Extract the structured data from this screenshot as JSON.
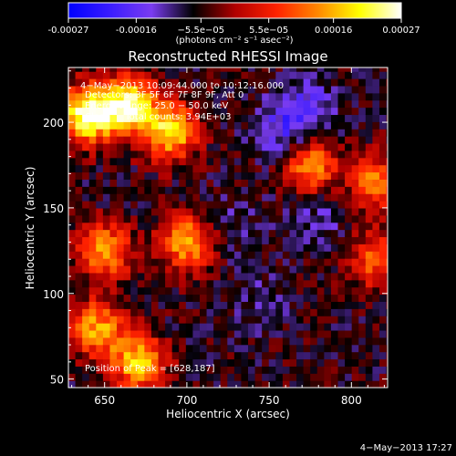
{
  "chart_data": {
    "type": "heatmap",
    "title": "Reconstructed RHESSI Image",
    "xlabel": "Heliocentric X (arcsec)",
    "ylabel": "Heliocentric Y (arcsec)",
    "xlim": [
      628,
      822
    ],
    "ylim": [
      45,
      232
    ],
    "x_ticks": [
      650,
      700,
      750,
      800
    ],
    "y_ticks": [
      50,
      100,
      150,
      200
    ],
    "colorbar": {
      "range": [
        -0.00027,
        0.00027
      ],
      "tick_values": [
        -0.00027,
        -0.00016,
        -5.5e-05,
        5.5e-05,
        0.00016,
        0.00027
      ],
      "tick_labels": [
        "-0.00027",
        "-0.00016",
        "−5.5e−05",
        "5.5e−05",
        "0.00016",
        "0.00027"
      ],
      "unit_label": "(photons cm⁻² s⁻¹ asec⁻²)",
      "colors": [
        "#0000ff",
        "#3a1cff",
        "#7a3cf0",
        "#000000",
        "#b00000",
        "#ff2200",
        "#ff8800",
        "#ffff00",
        "#ffffff"
      ]
    },
    "annotations": {
      "time_range": "4−May−2013 10:09:44.000 to 10:12:16.000",
      "detectors": "Detectors: 3F 5F 6F 7F 8F 9F, Att 0",
      "energy": "Energy Range: 25.0 − 50.0 keV",
      "clean": "Clean     Total counts: 3.94E+03",
      "peak": "Position of Peak = [628,187]"
    },
    "peak_position": [
      628,
      187
    ],
    "bright_regions": [
      {
        "x": 640,
        "y": 205,
        "level": 0.00027
      },
      {
        "x": 665,
        "y": 210,
        "level": 0.00024
      },
      {
        "x": 690,
        "y": 195,
        "level": 0.0002
      },
      {
        "x": 700,
        "y": 130,
        "level": 0.00016
      },
      {
        "x": 650,
        "y": 125,
        "level": 0.00015
      },
      {
        "x": 775,
        "y": 175,
        "level": 0.00016
      },
      {
        "x": 670,
        "y": 60,
        "level": 0.00018
      },
      {
        "x": 645,
        "y": 80,
        "level": 0.00015
      },
      {
        "x": 815,
        "y": 165,
        "level": 0.00012
      },
      {
        "x": 815,
        "y": 120,
        "level": 0.0001
      }
    ],
    "dim_regions": [
      {
        "x": 760,
        "y": 195,
        "level": -0.00016
      },
      {
        "x": 775,
        "y": 210,
        "level": -0.00014
      },
      {
        "x": 730,
        "y": 140,
        "level": -0.0001
      },
      {
        "x": 780,
        "y": 145,
        "level": -0.00012
      },
      {
        "x": 745,
        "y": 95,
        "level": -0.0001
      }
    ]
  },
  "footer": {
    "timestamp": "4−May−2013 17:27"
  }
}
